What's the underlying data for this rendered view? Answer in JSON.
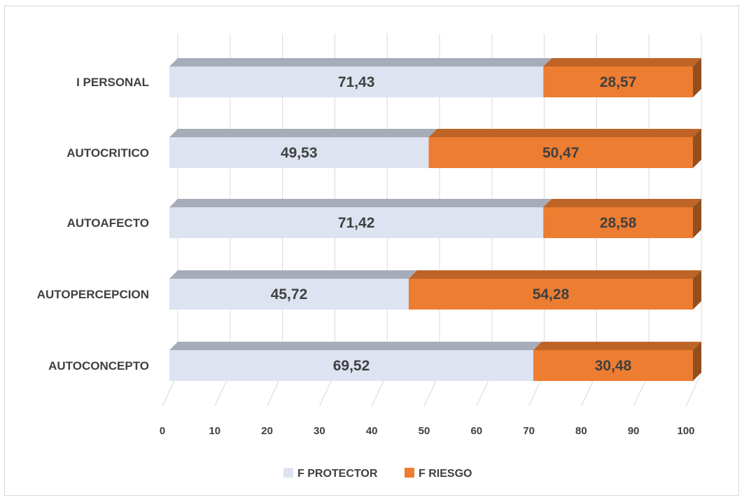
{
  "chart_data": {
    "type": "bar",
    "orientation": "horizontal",
    "stacked": true,
    "categories": [
      "AUTOCONCEPTO",
      "AUTOPERCEPCION",
      "AUTOAFECTO",
      "AUTOCRITICO",
      "I PERSONAL"
    ],
    "series": [
      {
        "name": "F PROTECTOR",
        "color": "#dde3f1",
        "values": [
          69.52,
          45.72,
          71.42,
          49.53,
          71.43
        ],
        "labels": [
          "69,52",
          "45,72",
          "71,42",
          "49,53",
          "71,43"
        ]
      },
      {
        "name": "F RIESGO",
        "color": "#ed7d31",
        "values": [
          30.48,
          54.28,
          28.58,
          50.47,
          28.57
        ],
        "labels": [
          "30,48",
          "54,28",
          "28,58",
          "50,47",
          "28,57"
        ]
      }
    ],
    "xlim": [
      0,
      100
    ],
    "xticks": [
      "0",
      "10",
      "20",
      "30",
      "40",
      "50",
      "60",
      "70",
      "80",
      "90",
      "100"
    ],
    "title": "",
    "xlabel": "",
    "ylabel": "",
    "grid": true,
    "legend": "bottom",
    "style": "3d"
  }
}
